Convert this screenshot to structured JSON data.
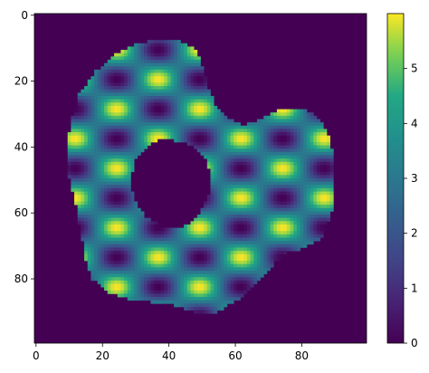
{
  "chart_data": {
    "type": "heatmap",
    "title": "",
    "xlabel": "",
    "ylabel": "",
    "grid_size": [
      100,
      100
    ],
    "xlim": [
      -0.5,
      99.5
    ],
    "ylim": [
      99.5,
      -0.5
    ],
    "x_ticks": [
      0,
      20,
      40,
      60,
      80
    ],
    "x_tick_labels": [
      "0",
      "20",
      "40",
      "60",
      "80"
    ],
    "y_ticks": [
      0,
      20,
      40,
      60,
      80
    ],
    "y_tick_labels": [
      "0",
      "20",
      "40",
      "60",
      "80"
    ],
    "colormap": "viridis",
    "value_range": [
      0,
      6
    ],
    "colorbar": {
      "ticks": [
        0,
        1,
        2,
        3,
        4,
        5
      ],
      "tick_labels": [
        "0",
        "1",
        "2",
        "3",
        "4",
        "5"
      ]
    },
    "pattern": {
      "formula": "3*(1 + sin(2*pi*(x - 5.5)/25) * cos(2*pi*(y - 19.5)/18))",
      "peaks_x": [
        12,
        25,
        37,
        50,
        62,
        75,
        87
      ],
      "peaks_y": [
        20,
        38,
        56,
        74
      ]
    },
    "outer_boundary": [
      [
        37,
        7.5
      ],
      [
        30,
        8.5
      ],
      [
        24,
        12
      ],
      [
        18,
        17
      ],
      [
        13,
        24
      ],
      [
        10.5,
        32
      ],
      [
        9.5,
        40
      ],
      [
        9.5,
        48
      ],
      [
        12,
        57
      ],
      [
        13.5,
        66
      ],
      [
        15,
        74
      ],
      [
        17,
        80
      ],
      [
        22,
        84
      ],
      [
        28,
        86
      ],
      [
        35,
        87
      ],
      [
        42,
        88
      ],
      [
        48,
        90
      ],
      [
        54,
        90.5
      ],
      [
        58,
        88
      ],
      [
        63,
        85
      ],
      [
        68,
        80
      ],
      [
        72,
        75
      ],
      [
        76,
        72
      ],
      [
        80,
        71
      ],
      [
        86,
        68
      ],
      [
        89,
        60
      ],
      [
        90,
        52
      ],
      [
        89.5,
        42
      ],
      [
        88,
        36
      ],
      [
        85,
        31
      ],
      [
        80,
        28
      ],
      [
        74,
        28.5
      ],
      [
        67,
        32
      ],
      [
        62,
        33.5
      ],
      [
        58,
        31
      ],
      [
        54,
        27
      ],
      [
        52,
        22
      ],
      [
        50,
        15
      ],
      [
        48,
        10
      ],
      [
        44,
        8
      ]
    ],
    "hole_boundary": [
      [
        38,
        37
      ],
      [
        33.5,
        39.5
      ],
      [
        30,
        44
      ],
      [
        28.5,
        50
      ],
      [
        29.5,
        56
      ],
      [
        33,
        61
      ],
      [
        38,
        64
      ],
      [
        44,
        64.5
      ],
      [
        49,
        61
      ],
      [
        52,
        55
      ],
      [
        52.5,
        48
      ],
      [
        51,
        43
      ],
      [
        48,
        40
      ],
      [
        44,
        38.5
      ]
    ]
  },
  "colors": {
    "background_value": 0,
    "axis": "#000000"
  }
}
